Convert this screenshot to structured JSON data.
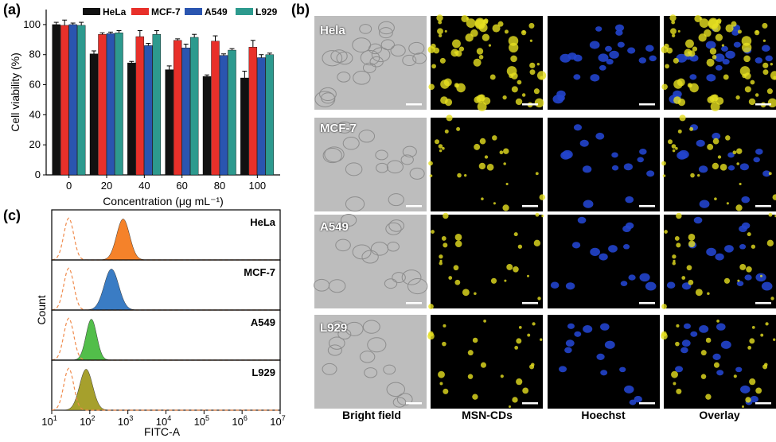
{
  "panel_labels": {
    "a": "(a)",
    "b": "(b)",
    "c": "(c)"
  },
  "chart_data": [
    {
      "type": "bar",
      "panel": "(a)",
      "categories": [
        "0",
        "20",
        "40",
        "60",
        "80",
        "100"
      ],
      "xlabel": "Concentration (μg mL⁻¹)",
      "ylabel": "Cell viability (%)",
      "ylim": [
        0,
        110
      ],
      "yticks": [
        "0",
        "20",
        "40",
        "60",
        "80",
        "100"
      ],
      "legend": "top",
      "series": [
        {
          "name": "HeLa",
          "color": "#111111",
          "values": [
            100,
            80.5,
            74.5,
            70,
            65.5,
            64.5
          ],
          "errors": [
            1.5,
            2,
            1,
            2.5,
            1,
            4.5
          ]
        },
        {
          "name": "MCF-7",
          "color": "#e8302a",
          "values": [
            99.5,
            93.5,
            92,
            89.5,
            89,
            85
          ],
          "errors": [
            3.5,
            1,
            4,
            1,
            3.5,
            4.5
          ]
        },
        {
          "name": "A549",
          "color": "#2a55b0",
          "values": [
            100,
            94,
            86,
            84.5,
            79.5,
            78
          ],
          "errors": [
            1,
            1,
            1.5,
            2.5,
            1,
            2
          ]
        },
        {
          "name": "L929",
          "color": "#2d9a8e",
          "values": [
            99.5,
            94.5,
            93.5,
            91.5,
            83,
            80
          ],
          "errors": [
            2,
            1.5,
            2.5,
            2,
            1,
            1
          ]
        }
      ]
    },
    {
      "type": "area",
      "panel": "(c)",
      "xlabel": "FITC-A",
      "ylabel": "Count",
      "xscale": "log",
      "xlim": [
        10,
        10000000
      ],
      "xticks": [
        {
          "base": "10",
          "exp": "1"
        },
        {
          "base": "10",
          "exp": "2"
        },
        {
          "base": "10",
          "exp": "3"
        },
        {
          "base": "10",
          "exp": "4"
        },
        {
          "base": "10",
          "exp": "5"
        },
        {
          "base": "10",
          "exp": "6"
        },
        {
          "base": "10",
          "exp": "7"
        }
      ],
      "control_style": "dashed",
      "control_color": "#f08a4b",
      "series": [
        {
          "name": "HeLa",
          "color": "#f5822a",
          "peak": 750,
          "width": 0.17,
          "control_peak": 28
        },
        {
          "name": "MCF-7",
          "color": "#3a7cc4",
          "peak": 370,
          "width": 0.19,
          "control_peak": 28
        },
        {
          "name": "A549",
          "color": "#52be4a",
          "peak": 110,
          "width": 0.14,
          "control_peak": 28
        },
        {
          "name": "L929",
          "color": "#a6a02c",
          "peak": 80,
          "width": 0.17,
          "control_peak": 28
        }
      ]
    }
  ],
  "microscopy": {
    "columns": [
      "Bright field",
      "MSN-CDs",
      "Hoechst",
      "Overlay"
    ],
    "rows": [
      {
        "label": "Hela"
      },
      {
        "label": "MCF-7"
      },
      {
        "label": "A549"
      },
      {
        "label": "L929"
      }
    ],
    "colors": {
      "nucleus": "#2244cc",
      "cd_signal": "#e6e020",
      "bright_bg": "#bdbdbd",
      "dark_bg": "#000000"
    }
  }
}
